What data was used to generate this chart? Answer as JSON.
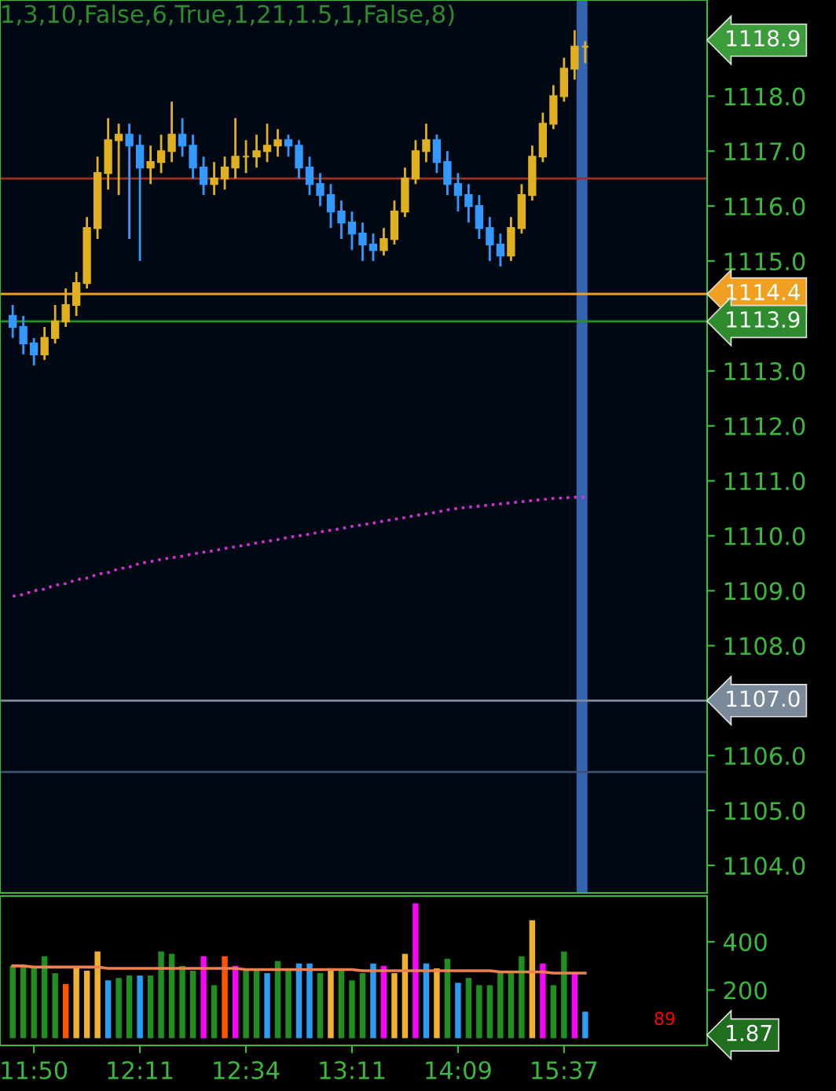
{
  "chart_data": [
    {
      "type": "candlestick",
      "title": "1,3,10,False,6,True,1,21,1.5,1,False,8)",
      "categories": [
        null,
        null,
        null,
        null,
        null,
        null,
        null,
        null,
        null,
        null,
        null,
        null,
        null,
        null,
        null,
        null,
        null,
        null,
        null,
        null,
        null,
        null,
        null,
        null,
        null,
        null,
        null,
        null,
        null,
        null,
        null,
        null,
        null,
        null,
        null,
        null,
        null,
        null,
        null,
        null,
        null,
        null,
        null,
        null,
        null,
        null,
        null,
        null,
        null,
        null,
        null,
        null,
        null,
        null,
        null
      ],
      "ohlc": [
        [
          1114.0,
          1114.2,
          1113.6,
          1113.8
        ],
        [
          1113.8,
          1114.0,
          1113.3,
          1113.5
        ],
        [
          1113.5,
          1113.6,
          1113.1,
          1113.3
        ],
        [
          1113.3,
          1113.8,
          1113.2,
          1113.6
        ],
        [
          1113.6,
          1114.2,
          1113.5,
          1113.9
        ],
        [
          1113.9,
          1114.5,
          1113.8,
          1114.2
        ],
        [
          1114.2,
          1114.8,
          1114.0,
          1114.6
        ],
        [
          1114.6,
          1115.8,
          1114.5,
          1115.6
        ],
        [
          1115.6,
          1116.9,
          1115.4,
          1116.6
        ],
        [
          1116.6,
          1117.6,
          1116.3,
          1117.2
        ],
        [
          1117.2,
          1117.5,
          1116.2,
          1117.3
        ],
        [
          1117.3,
          1117.5,
          1115.4,
          1117.1
        ],
        [
          1117.1,
          1117.3,
          1115.0,
          1116.7
        ],
        [
          1116.7,
          1117.1,
          1116.4,
          1116.8
        ],
        [
          1116.8,
          1117.3,
          1116.6,
          1117.0
        ],
        [
          1117.0,
          1117.9,
          1116.8,
          1117.3
        ],
        [
          1117.3,
          1117.6,
          1116.9,
          1117.1
        ],
        [
          1117.1,
          1117.3,
          1116.5,
          1116.7
        ],
        [
          1116.7,
          1116.9,
          1116.2,
          1116.4
        ],
        [
          1116.4,
          1116.8,
          1116.2,
          1116.5
        ],
        [
          1116.5,
          1116.9,
          1116.3,
          1116.7
        ],
        [
          1116.7,
          1117.6,
          1116.5,
          1116.9
        ],
        [
          1116.9,
          1117.2,
          1116.6,
          1116.9
        ],
        [
          1116.9,
          1117.3,
          1116.7,
          1117.0
        ],
        [
          1117.0,
          1117.5,
          1116.8,
          1117.1
        ],
        [
          1117.1,
          1117.4,
          1116.9,
          1117.2
        ],
        [
          1117.2,
          1117.3,
          1116.9,
          1117.1
        ],
        [
          1117.1,
          1117.2,
          1116.5,
          1116.7
        ],
        [
          1116.7,
          1116.9,
          1116.2,
          1116.4
        ],
        [
          1116.4,
          1116.6,
          1116.0,
          1116.2
        ],
        [
          1116.2,
          1116.4,
          1115.6,
          1115.9
        ],
        [
          1115.9,
          1116.1,
          1115.4,
          1115.7
        ],
        [
          1115.7,
          1115.9,
          1115.2,
          1115.5
        ],
        [
          1115.5,
          1115.7,
          1115.0,
          1115.3
        ],
        [
          1115.3,
          1115.5,
          1115.0,
          1115.2
        ],
        [
          1115.2,
          1115.6,
          1115.1,
          1115.4
        ],
        [
          1115.4,
          1116.1,
          1115.3,
          1115.9
        ],
        [
          1115.9,
          1116.7,
          1115.8,
          1116.5
        ],
        [
          1116.5,
          1117.2,
          1116.4,
          1117.0
        ],
        [
          1117.0,
          1117.5,
          1116.8,
          1117.2
        ],
        [
          1117.2,
          1117.3,
          1116.6,
          1116.8
        ],
        [
          1116.8,
          1117.0,
          1116.2,
          1116.4
        ],
        [
          1116.4,
          1116.6,
          1115.9,
          1116.2
        ],
        [
          1116.2,
          1116.4,
          1115.7,
          1116.0
        ],
        [
          1116.0,
          1116.2,
          1115.4,
          1115.6
        ],
        [
          1115.6,
          1115.8,
          1115.0,
          1115.3
        ],
        [
          1115.3,
          1115.5,
          1114.9,
          1115.1
        ],
        [
          1115.1,
          1115.8,
          1115.0,
          1115.6
        ],
        [
          1115.6,
          1116.4,
          1115.5,
          1116.2
        ],
        [
          1116.2,
          1117.1,
          1116.1,
          1116.9
        ],
        [
          1116.9,
          1117.7,
          1116.8,
          1117.5
        ],
        [
          1117.5,
          1118.2,
          1117.4,
          1118.0
        ],
        [
          1118.0,
          1118.7,
          1117.9,
          1118.5
        ],
        [
          1118.5,
          1119.2,
          1118.3,
          1118.9
        ],
        [
          1118.9,
          1119.0,
          1118.6,
          1118.9
        ]
      ],
      "colors": [
        "#3399ff",
        "#3399ff",
        "#3399ff",
        "#e0b020",
        "#e0b020",
        "#e0b020",
        "#e0b020",
        "#e0b020",
        "#e0b020",
        "#e0b020",
        "#e0b020",
        "#3399ff",
        "#3399ff",
        "#e0b020",
        "#e0b020",
        "#e0b020",
        "#3399ff",
        "#3399ff",
        "#3399ff",
        "#e0b020",
        "#e0b020",
        "#e0b020",
        "#e0b020",
        "#e0b020",
        "#e0b020",
        "#e0b020",
        "#3399ff",
        "#3399ff",
        "#3399ff",
        "#3399ff",
        "#3399ff",
        "#3399ff",
        "#3399ff",
        "#3399ff",
        "#3399ff",
        "#e0b020",
        "#e0b020",
        "#e0b020",
        "#e0b020",
        "#e0b020",
        "#3399ff",
        "#3399ff",
        "#3399ff",
        "#3399ff",
        "#3399ff",
        "#3399ff",
        "#3399ff",
        "#e0b020",
        "#e0b020",
        "#e0b020",
        "#e0b020",
        "#e0b020",
        "#e0b020",
        "#e0b020",
        "#e0b020"
      ],
      "series": [
        {
          "type": "line",
          "values": [
            1108.9,
            1108.93,
            1109.0,
            1109.03,
            1109.1,
            1109.13,
            1109.2,
            1109.23,
            1109.3,
            1109.33,
            1109.4,
            1109.43,
            1109.5,
            1109.53,
            1109.57,
            1109.6,
            1109.63,
            1109.67,
            1109.7,
            1109.73,
            1109.77,
            1109.8,
            1109.83,
            1109.87,
            1109.9,
            1109.93,
            1109.97,
            1110.0,
            1110.03,
            1110.07,
            1110.1,
            1110.13,
            1110.17,
            1110.2,
            1110.23,
            1110.27,
            1110.3,
            1110.33,
            1110.37,
            1110.4,
            1110.43,
            1110.47,
            1110.5,
            1110.52,
            1110.54,
            1110.56,
            1110.58,
            1110.6,
            1110.62,
            1110.64,
            1110.66,
            1110.68,
            1110.69,
            1110.7,
            1110.7
          ],
          "color": "#cc33cc",
          "line_style": "dotted"
        }
      ],
      "ylim": [
        1103.5,
        1119.75
      ],
      "yticks": [
        {
          "value": 1104,
          "label": "1104.0"
        },
        {
          "value": 1105,
          "label": "1105.0"
        },
        {
          "value": 1106,
          "label": "1106.0"
        },
        {
          "value": 1107,
          "label": null
        },
        {
          "value": 1108,
          "label": "1108.0"
        },
        {
          "value": 1109,
          "label": "1109.0"
        },
        {
          "value": 1110,
          "label": "1110.0"
        },
        {
          "value": 1111,
          "label": "1111.0"
        },
        {
          "value": 1112,
          "label": "1112.0"
        },
        {
          "value": 1113,
          "label": "1113.0"
        },
        {
          "value": 1115,
          "label": "1115.0"
        },
        {
          "value": 1116,
          "label": "1116.0"
        },
        {
          "value": 1117,
          "label": "1117.0"
        },
        {
          "value": 1118,
          "label": "1118.0"
        }
      ],
      "tick_labels": "y",
      "ref_lines": [
        {
          "axis": "y",
          "value": 1114.4,
          "label": "1114.4",
          "color": "#f0a020"
        },
        {
          "axis": "y",
          "value": 1113.9,
          "label": "1113.9",
          "color": "#2e8b2e"
        },
        {
          "axis": "y",
          "value": 1107.0,
          "label": "1107.0",
          "color": "#7a8a9a"
        },
        {
          "axis": "y",
          "value": 1116.5,
          "color": "#a03020"
        },
        {
          "axis": "y",
          "value": 1105.7,
          "color": "#405070"
        }
      ],
      "annotations": [
        "1118.9"
      ]
    },
    {
      "type": "bar",
      "categories": [
        null,
        null,
        "11:50",
        null,
        null,
        null,
        null,
        null,
        null,
        null,
        null,
        null,
        "12:11",
        null,
        null,
        null,
        null,
        null,
        null,
        null,
        null,
        null,
        "12:34",
        null,
        null,
        null,
        null,
        null,
        null,
        null,
        null,
        null,
        "13:11",
        null,
        null,
        null,
        null,
        null,
        null,
        null,
        null,
        null,
        "14:09",
        null,
        null,
        null,
        null,
        null,
        null,
        null,
        null,
        null,
        "15:37",
        null,
        null
      ],
      "series": [
        {
          "type": "bar",
          "values": [
            300,
            300,
            300,
            340,
            270,
            225,
            300,
            280,
            360,
            240,
            250,
            260,
            260,
            260,
            360,
            350,
            300,
            280,
            340,
            220,
            340,
            300,
            280,
            280,
            270,
            320,
            280,
            310,
            310,
            270,
            290,
            290,
            240,
            270,
            310,
            300,
            270,
            350,
            560,
            310,
            290,
            330,
            230,
            250,
            220,
            220,
            280,
            270,
            340,
            490,
            310,
            220,
            360,
            270,
            110
          ],
          "colors": [
            "#1f8f1f",
            "#1f8f1f",
            "#1f8f1f",
            "#1f8f1f",
            "#1f8f1f",
            "#ff5500",
            "#f0b030",
            "#f0b030",
            "#f0b030",
            "#2a9df4",
            "#1f8f1f",
            "#1f8f1f",
            "#2a9df4",
            "#1f8f1f",
            "#1f8f1f",
            "#1f8f1f",
            "#1f8f1f",
            "#1f8f1f",
            "#ff00ff",
            "#1f8f1f",
            "#ff5500",
            "#ff00ff",
            "#1f8f1f",
            "#1f8f1f",
            "#2a9df4",
            "#1f8f1f",
            "#1f8f1f",
            "#2a9df4",
            "#2a9df4",
            "#1f8f1f",
            "#f0b030",
            "#1f8f1f",
            "#1f8f1f",
            "#1f8f1f",
            "#2a9df4",
            "#ff00ff",
            "#f0b030",
            "#f0b030",
            "#ff00ff",
            "#2a9df4",
            "#f0b030",
            "#1f8f1f",
            "#2a9df4",
            "#1f8f1f",
            "#1f8f1f",
            "#1f8f1f",
            "#1f8f1f",
            "#1f8f1f",
            "#1f8f1f",
            "#f0b030",
            "#ff00ff",
            "#1f8f1f",
            "#1f8f1f",
            "#ff00ff",
            "#2a9df4"
          ]
        },
        {
          "type": "line",
          "color": "#f08050",
          "values": [
            300,
            300,
            295,
            295,
            295,
            295,
            295,
            295,
            295,
            290,
            290,
            290,
            290,
            290,
            290,
            290,
            290,
            290,
            290,
            290,
            290,
            290,
            285,
            285,
            285,
            285,
            285,
            285,
            285,
            285,
            285,
            285,
            285,
            280,
            280,
            280,
            280,
            280,
            280,
            280,
            280,
            280,
            280,
            280,
            280,
            280,
            275,
            275,
            275,
            275,
            275,
            270,
            270,
            270,
            270
          ]
        }
      ],
      "ylim": [
        -30,
        590
      ],
      "yticks": [
        200,
        400
      ],
      "annotations": [
        "89",
        "1.87"
      ]
    }
  ]
}
